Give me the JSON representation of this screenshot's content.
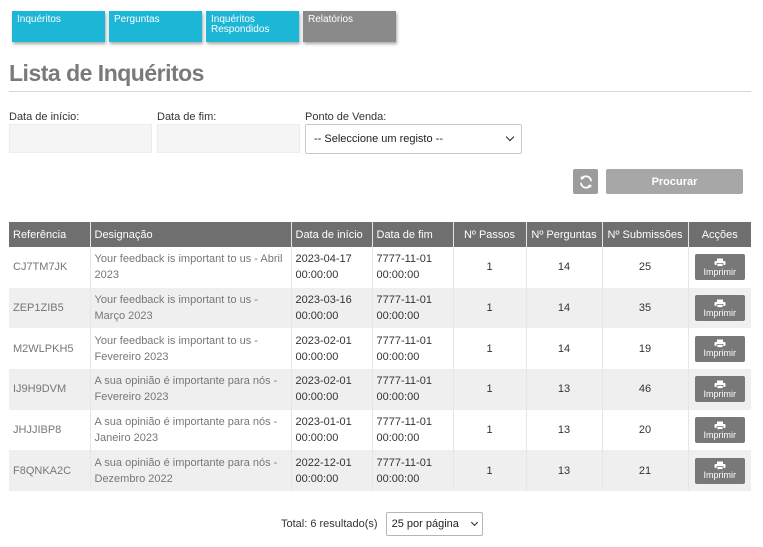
{
  "tabs": [
    {
      "label": "Inquéritos"
    },
    {
      "label": "Perguntas"
    },
    {
      "label": "Inquéritos Respondidos"
    },
    {
      "label": "Relatórios"
    }
  ],
  "page_title": "Lista de Inquéritos",
  "filters": {
    "start_label": "Data de início:",
    "start_value": "",
    "end_label": "Data de fim:",
    "end_value": "",
    "pos_label": "Ponto de Venda:",
    "pos_selected": "-- Seleccione um registo --"
  },
  "actions": {
    "refresh_icon": "refresh-icon",
    "search_label": "Procurar"
  },
  "table": {
    "headers": [
      "Referência",
      "Designação",
      "Data de início",
      "Data de fim",
      "Nº Passos",
      "Nº Perguntas",
      "Nº Submissões",
      "Acções"
    ],
    "print_label": "Imprimir",
    "print_icon": "printer-icon",
    "rows": [
      {
        "ref": "CJ7TM7JK",
        "desc": "Your feedback is important to us - Abril 2023",
        "start": "2023-04-17 00:00:00",
        "end": "7777-11-01 00:00:00",
        "steps": "1",
        "questions": "14",
        "submissions": "25"
      },
      {
        "ref": "ZEP1ZIB5",
        "desc": "Your feedback is important to us - Março 2023",
        "start": "2023-03-16 00:00:00",
        "end": "7777-11-01 00:00:00",
        "steps": "1",
        "questions": "14",
        "submissions": "35"
      },
      {
        "ref": "M2WLPKH5",
        "desc": "Your feedback is important to us - Fevereiro 2023",
        "start": "2023-02-01 00:00:00",
        "end": "7777-11-01 00:00:00",
        "steps": "1",
        "questions": "14",
        "submissions": "19"
      },
      {
        "ref": "IJ9H9DVM",
        "desc": "A sua opinião é importante para nós - Fevereiro 2023",
        "start": "2023-02-01 00:00:00",
        "end": "7777-11-01 00:00:00",
        "steps": "1",
        "questions": "13",
        "submissions": "46"
      },
      {
        "ref": "JHJJIBP8",
        "desc": "A sua opinião é importante para nós - Janeiro 2023",
        "start": "2023-01-01 00:00:00",
        "end": "7777-11-01 00:00:00",
        "steps": "1",
        "questions": "13",
        "submissions": "20"
      },
      {
        "ref": "F8QNKA2C",
        "desc": "A sua opinião é importante para nós - Dezembro 2022",
        "start": "2022-12-01 00:00:00",
        "end": "7777-11-01 00:00:00",
        "steps": "1",
        "questions": "13",
        "submissions": "21"
      }
    ]
  },
  "footer": {
    "total_text": "Total: 6 resultado(s)",
    "per_page_selected": "25 por página"
  },
  "colors": {
    "tab_active": "#1cb6d6",
    "tab_inactive": "#8a8a8a",
    "table_header": "#6f6f6f",
    "button": "#a7a7a7"
  }
}
